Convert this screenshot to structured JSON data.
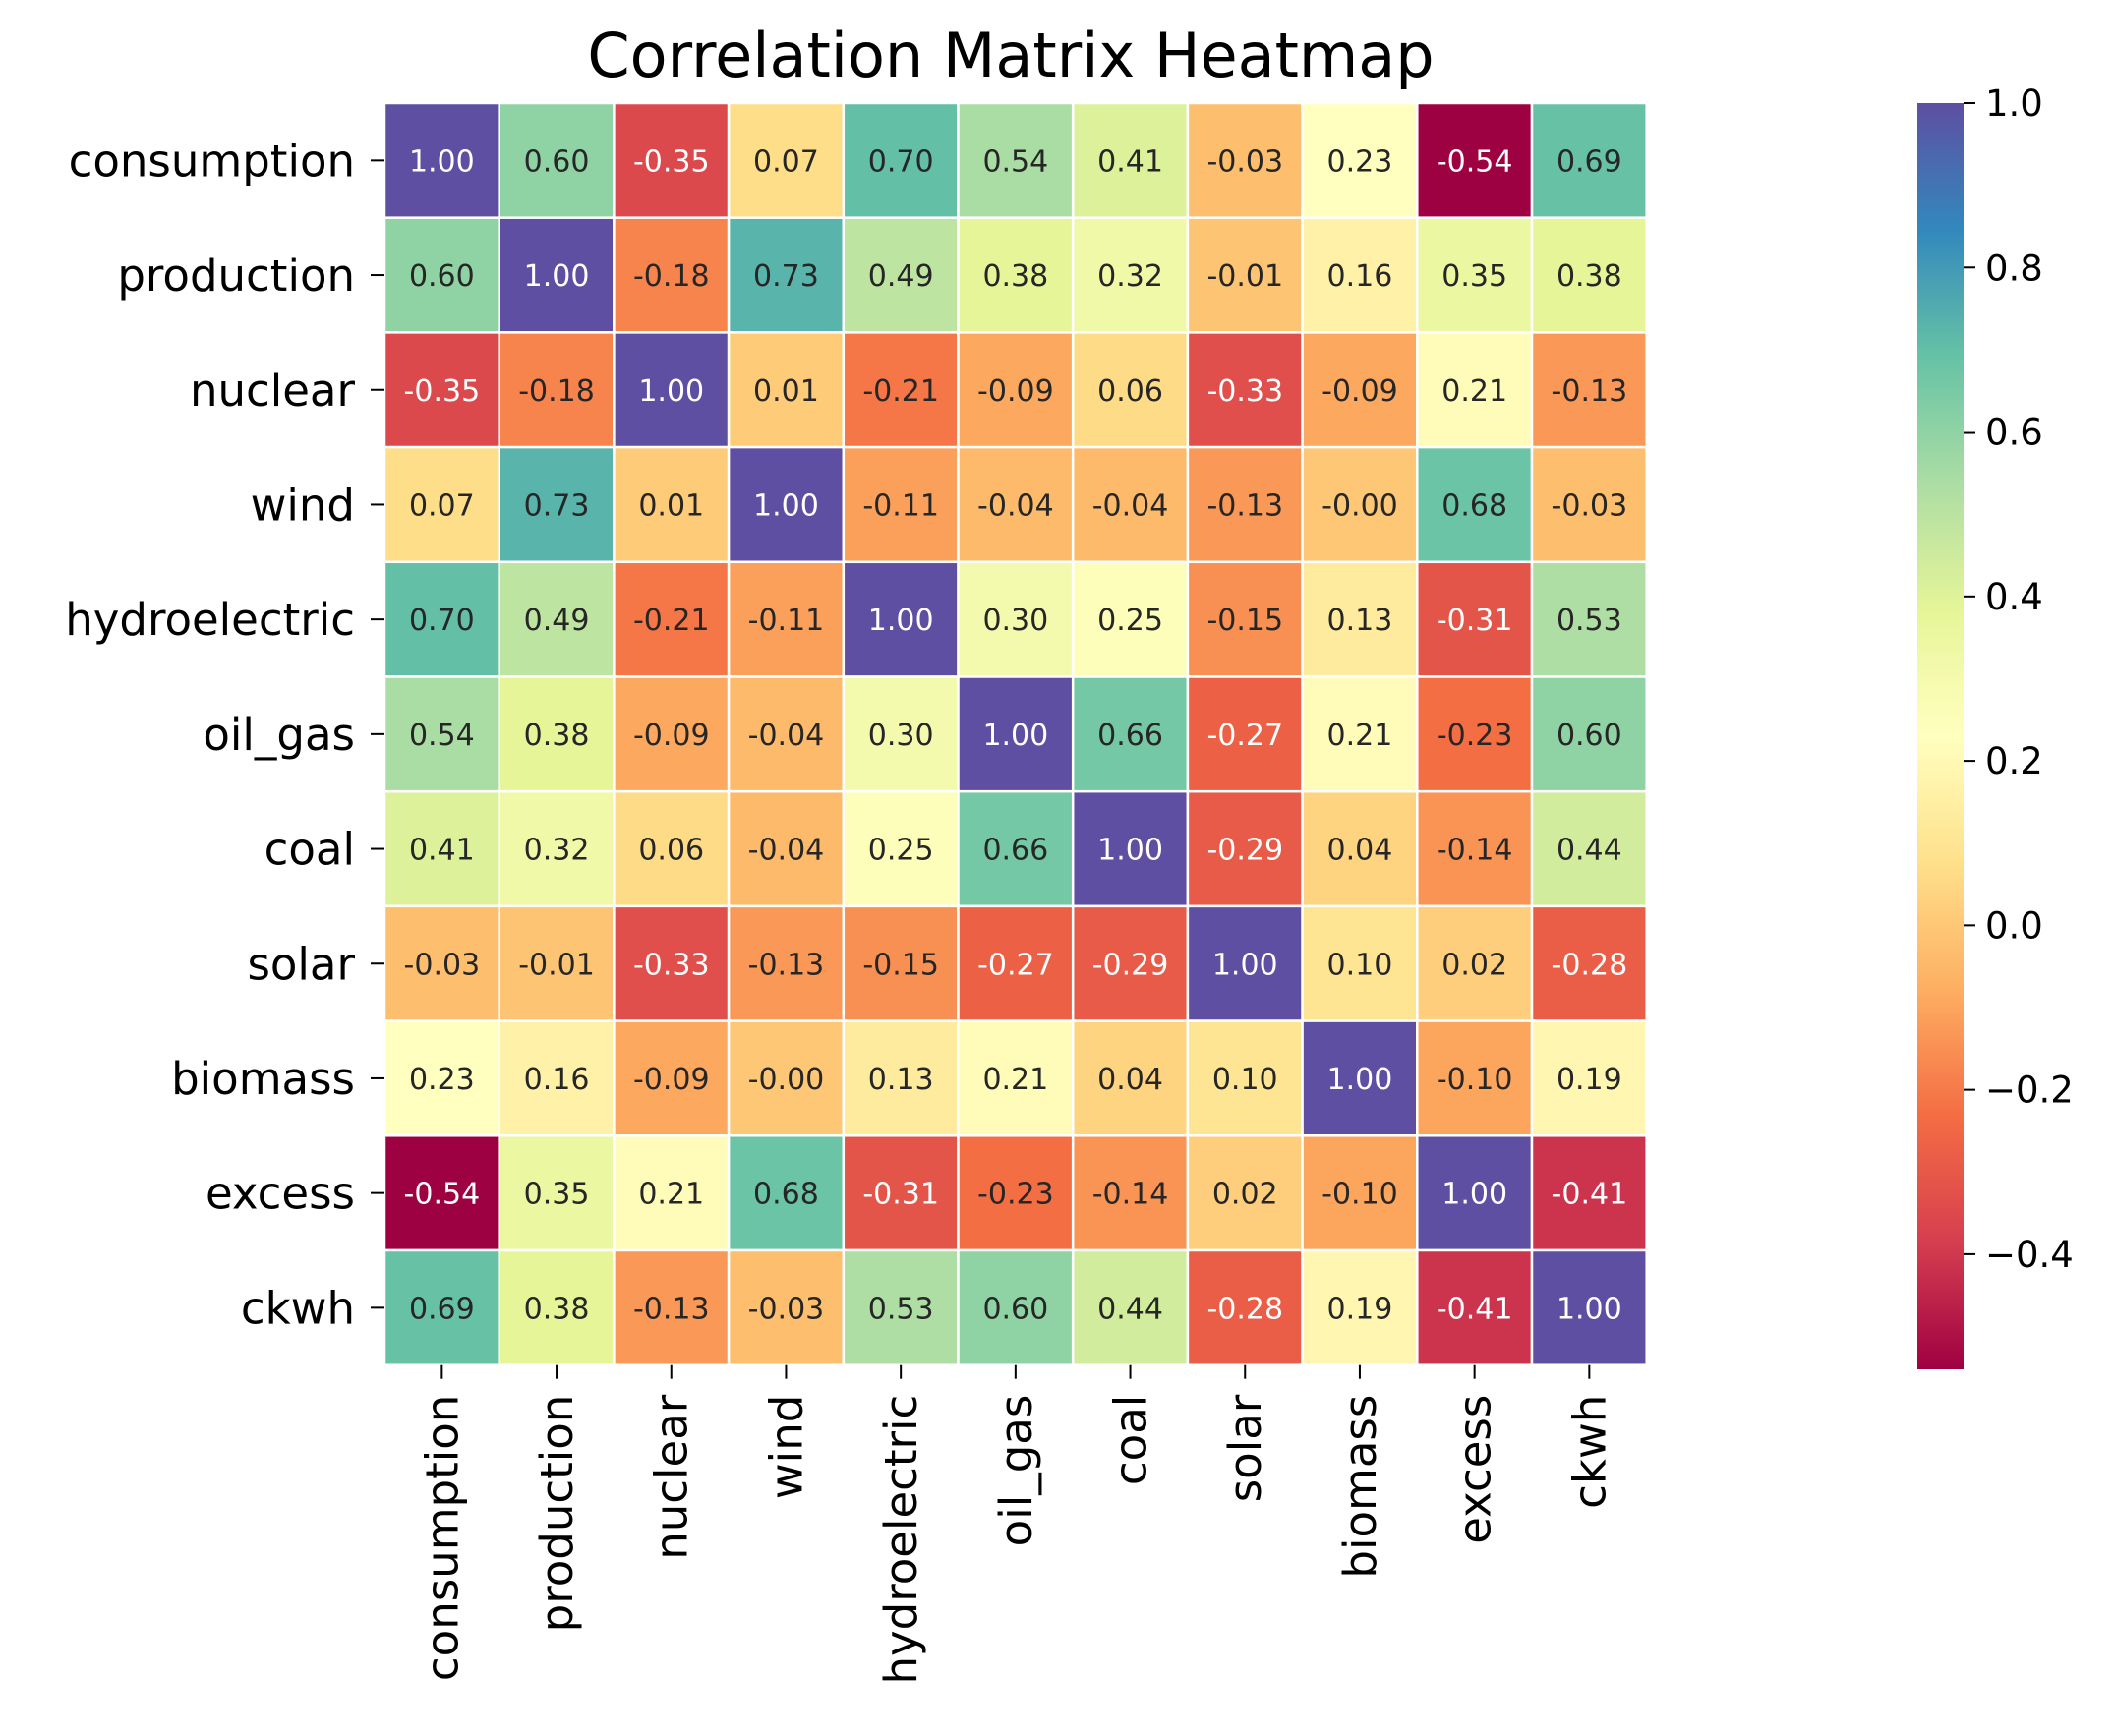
{
  "chart_data": {
    "type": "heatmap",
    "title": "Correlation Matrix Heatmap",
    "xlabel": "",
    "ylabel": "",
    "colormap": "Spectral",
    "color_range": [
      -0.54,
      1.0
    ],
    "colorbar_ticks": [
      "1.0",
      "0.8",
      "0.6",
      "0.4",
      "0.2",
      "0.0",
      "−0.2",
      "−0.4"
    ],
    "colorbar_tick_values": [
      1.0,
      0.8,
      0.6,
      0.4,
      0.2,
      0.0,
      -0.2,
      -0.4
    ],
    "labels": [
      "consumption",
      "production",
      "nuclear",
      "wind",
      "hydroelectric",
      "oil_gas",
      "coal",
      "solar",
      "biomass",
      "excess",
      "ckwh"
    ],
    "values": [
      [
        1.0,
        0.6,
        -0.35,
        0.07,
        0.7,
        0.54,
        0.41,
        -0.03,
        0.23,
        -0.54,
        0.69
      ],
      [
        0.6,
        1.0,
        -0.18,
        0.73,
        0.49,
        0.38,
        0.32,
        -0.01,
        0.16,
        0.35,
        0.38
      ],
      [
        -0.35,
        -0.18,
        1.0,
        0.01,
        -0.21,
        -0.09,
        0.06,
        -0.33,
        -0.09,
        0.21,
        -0.13
      ],
      [
        0.07,
        0.73,
        0.01,
        1.0,
        -0.11,
        -0.04,
        -0.04,
        -0.13,
        -0.0,
        0.68,
        -0.03
      ],
      [
        0.7,
        0.49,
        -0.21,
        -0.11,
        1.0,
        0.3,
        0.25,
        -0.15,
        0.13,
        -0.31,
        0.53
      ],
      [
        0.54,
        0.38,
        -0.09,
        -0.04,
        0.3,
        1.0,
        0.66,
        -0.27,
        0.21,
        -0.23,
        0.6
      ],
      [
        0.41,
        0.32,
        0.06,
        -0.04,
        0.25,
        0.66,
        1.0,
        -0.29,
        0.04,
        -0.14,
        0.44
      ],
      [
        -0.03,
        -0.01,
        -0.33,
        -0.13,
        -0.15,
        -0.27,
        -0.29,
        1.0,
        0.1,
        0.02,
        -0.28
      ],
      [
        0.23,
        0.16,
        -0.09,
        -0.0,
        0.13,
        0.21,
        0.04,
        0.1,
        1.0,
        -0.1,
        0.19
      ],
      [
        -0.54,
        0.35,
        0.21,
        0.68,
        -0.31,
        -0.23,
        -0.14,
        0.02,
        -0.1,
        1.0,
        -0.41
      ],
      [
        0.69,
        0.38,
        -0.13,
        -0.03,
        0.53,
        0.6,
        0.44,
        -0.28,
        0.19,
        -0.41,
        1.0
      ]
    ],
    "cell_labels": [
      [
        "1.00",
        "0.60",
        "-0.35",
        "0.07",
        "0.70",
        "0.54",
        "0.41",
        "-0.03",
        "0.23",
        "-0.54",
        "0.69"
      ],
      [
        "0.60",
        "1.00",
        "-0.18",
        "0.73",
        "0.49",
        "0.38",
        "0.32",
        "-0.01",
        "0.16",
        "0.35",
        "0.38"
      ],
      [
        "-0.35",
        "-0.18",
        "1.00",
        "0.01",
        "-0.21",
        "-0.09",
        "0.06",
        "-0.33",
        "-0.09",
        "0.21",
        "-0.13"
      ],
      [
        "0.07",
        "0.73",
        "0.01",
        "1.00",
        "-0.11",
        "-0.04",
        "-0.04",
        "-0.13",
        "-0.00",
        "0.68",
        "-0.03"
      ],
      [
        "0.70",
        "0.49",
        "-0.21",
        "-0.11",
        "1.00",
        "0.30",
        "0.25",
        "-0.15",
        "0.13",
        "-0.31",
        "0.53"
      ],
      [
        "0.54",
        "0.38",
        "-0.09",
        "-0.04",
        "0.30",
        "1.00",
        "0.66",
        "-0.27",
        "0.21",
        "-0.23",
        "0.60"
      ],
      [
        "0.41",
        "0.32",
        "0.06",
        "-0.04",
        "0.25",
        "0.66",
        "1.00",
        "-0.29",
        "0.04",
        "-0.14",
        "0.44"
      ],
      [
        "-0.03",
        "-0.01",
        "-0.33",
        "-0.13",
        "-0.15",
        "-0.27",
        "-0.29",
        "1.00",
        "0.10",
        "0.02",
        "-0.28"
      ],
      [
        "0.23",
        "0.16",
        "-0.09",
        "-0.00",
        "0.13",
        "0.21",
        "0.04",
        "0.10",
        "1.00",
        "-0.10",
        "0.19"
      ],
      [
        "-0.54",
        "0.35",
        "0.21",
        "0.68",
        "-0.31",
        "-0.23",
        "-0.14",
        "0.02",
        "-0.10",
        "1.00",
        "-0.41"
      ],
      [
        "0.69",
        "0.38",
        "-0.13",
        "-0.03",
        "0.53",
        "0.60",
        "0.44",
        "-0.28",
        "0.19",
        "-0.41",
        "1.00"
      ]
    ]
  }
}
